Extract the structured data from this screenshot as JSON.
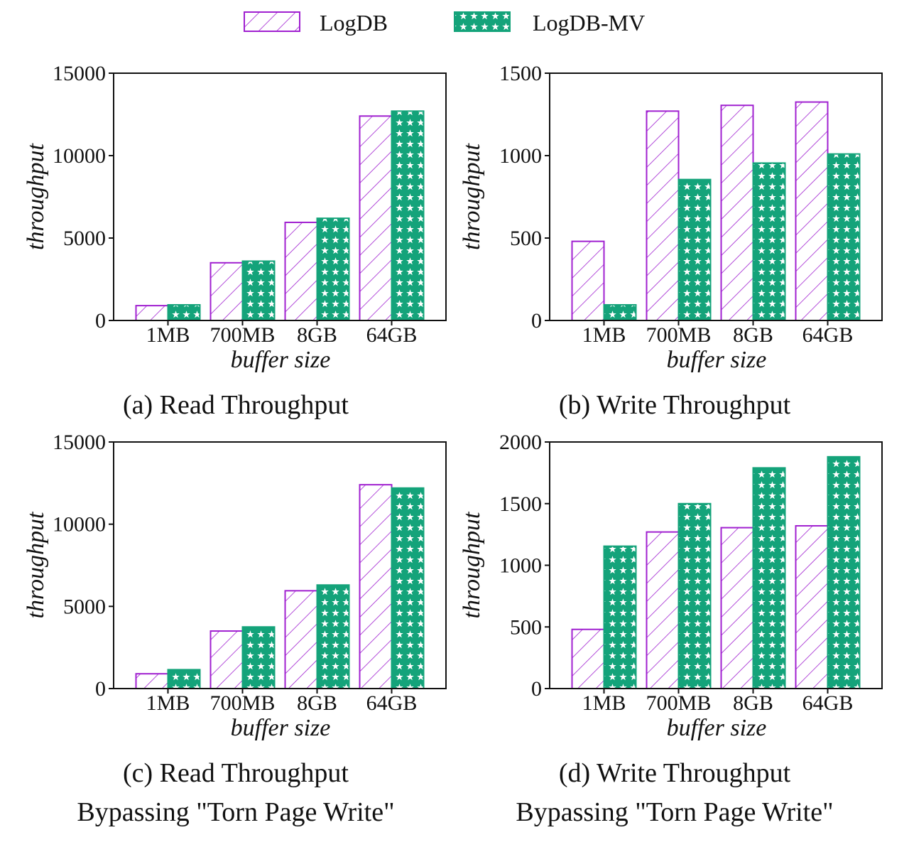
{
  "legend": {
    "items": [
      {
        "label": "LogDB",
        "pattern": "hatch",
        "color": "#a020d0"
      },
      {
        "label": "LogDB-MV",
        "pattern": "stars",
        "color": "#14a37a"
      }
    ]
  },
  "colors": {
    "logdb": "#a020d0",
    "logdb_mv": "#14a37a",
    "axis": "#111111"
  },
  "chart_data": [
    {
      "type": "bar",
      "caption": [
        "(a) Read Throughput"
      ],
      "xlabel": "buffer size",
      "ylabel": "throughput",
      "categories": [
        "1MB",
        "700MB",
        "8GB",
        "64GB"
      ],
      "ylim": [
        0,
        15000
      ],
      "yticks": [
        0,
        5000,
        10000,
        15000
      ],
      "series": [
        {
          "name": "LogDB",
          "values": [
            900,
            3500,
            5950,
            12400
          ]
        },
        {
          "name": "LogDB-MV",
          "values": [
            950,
            3600,
            6200,
            12700
          ]
        }
      ]
    },
    {
      "type": "bar",
      "caption": [
        "(b) Write Throughput"
      ],
      "xlabel": "buffer size",
      "ylabel": "throughput",
      "categories": [
        "1MB",
        "700MB",
        "8GB",
        "64GB"
      ],
      "ylim": [
        0,
        1500
      ],
      "yticks": [
        0,
        500,
        1000,
        1500
      ],
      "series": [
        {
          "name": "LogDB",
          "values": [
            480,
            1270,
            1305,
            1325
          ]
        },
        {
          "name": "LogDB-MV",
          "values": [
            95,
            855,
            955,
            1010
          ]
        }
      ]
    },
    {
      "type": "bar",
      "caption": [
        "(c) Read Throughput",
        "Bypassing \"Torn Page Write\""
      ],
      "xlabel": "buffer size",
      "ylabel": "throughput",
      "categories": [
        "1MB",
        "700MB",
        "8GB",
        "64GB"
      ],
      "ylim": [
        0,
        15000
      ],
      "yticks": [
        0,
        5000,
        10000,
        15000
      ],
      "series": [
        {
          "name": "LogDB",
          "values": [
            900,
            3500,
            5950,
            12400
          ]
        },
        {
          "name": "LogDB-MV",
          "values": [
            1150,
            3750,
            6300,
            12200
          ]
        }
      ]
    },
    {
      "type": "bar",
      "caption": [
        "(d) Write Throughput",
        "Bypassing \"Torn Page Write\""
      ],
      "xlabel": "buffer size",
      "ylabel": "throughput",
      "categories": [
        "1MB",
        "700MB",
        "8GB",
        "64GB"
      ],
      "ylim": [
        0,
        2000
      ],
      "yticks": [
        0,
        500,
        1000,
        1500,
        2000
      ],
      "series": [
        {
          "name": "LogDB",
          "values": [
            480,
            1270,
            1305,
            1320
          ]
        },
        {
          "name": "LogDB-MV",
          "values": [
            1155,
            1500,
            1790,
            1880
          ]
        }
      ]
    }
  ]
}
